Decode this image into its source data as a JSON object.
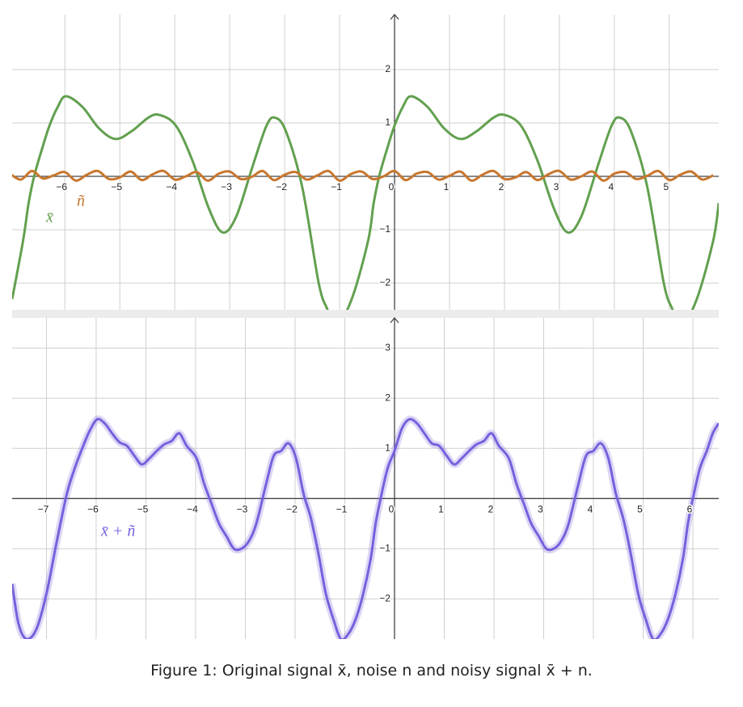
{
  "chart_data": [
    {
      "type": "line",
      "xlim": [
        -6.96,
        5.9
      ],
      "ylim": [
        -2.5,
        3.03
      ],
      "xticks": [
        {
          "value": -6,
          "label": "−6"
        },
        {
          "value": -5,
          "label": "−5"
        },
        {
          "value": -4,
          "label": "−4"
        },
        {
          "value": -3,
          "label": "−3"
        },
        {
          "value": -2,
          "label": "−2"
        },
        {
          "value": -1,
          "label": "−1"
        },
        0,
        1,
        2,
        3,
        4,
        5
      ],
      "yticks": [
        2,
        1,
        {
          "value": -1,
          "label": "−1"
        },
        {
          "value": -2,
          "label": "−2"
        }
      ],
      "grid": true,
      "series": [
        {
          "name": "x̄",
          "color": "#62a04f",
          "x": [
            -6.96,
            -6.76,
            -6.66,
            -6.56,
            -6.42,
            -6.28,
            -6.13,
            -5.98,
            -5.68,
            -5.38,
            -5.08,
            -4.78,
            -4.48,
            -4.28,
            -3.98,
            -3.68,
            -3.38,
            -3.13,
            -2.88,
            -2.58,
            -2.33,
            -2.18,
            -1.98,
            -1.68,
            -1.38,
            -1.22,
            -1.08,
            -0.78,
            -0.48,
            -0.38,
            -0.28,
            -0.14,
            0,
            0.15,
            0.3,
            0.6,
            0.9,
            1.2,
            1.5,
            1.8,
            2,
            2.3,
            2.6,
            2.9,
            3.15,
            3.4,
            3.7,
            3.95,
            4.1,
            4.3,
            4.6,
            4.9,
            5.06,
            5.2,
            5.5,
            5.8,
            5.9
          ],
          "values": [
            -2.3,
            -1.2,
            -0.5,
            0,
            0.5,
            0.95,
            1.3,
            1.5,
            1.3,
            0.9,
            0.7,
            0.85,
            1.1,
            1.15,
            0.95,
            0.3,
            -0.6,
            -1.05,
            -0.75,
            0.2,
            0.95,
            1.1,
            0.85,
            -0.2,
            -2.0,
            -2.5,
            -2.85,
            -2.3,
            -1.2,
            -0.5,
            0,
            0.5,
            0.95,
            1.3,
            1.5,
            1.3,
            0.9,
            0.7,
            0.85,
            1.1,
            1.15,
            0.95,
            0.3,
            -0.6,
            -1.05,
            -0.75,
            0.2,
            0.95,
            1.1,
            0.85,
            -0.2,
            -2.0,
            -2.5,
            -2.85,
            -2.3,
            -1.2,
            -0.5
          ]
        },
        {
          "name": "ñ",
          "color": "#c8772f",
          "x": [
            -7,
            -6.8,
            -6.6,
            -6.4,
            -6.2,
            -6,
            -5.8,
            -5.6,
            -5.4,
            -5.2,
            -5,
            -4.8,
            -4.6,
            -4.4,
            -4.2,
            -4,
            -3.8,
            -3.6,
            -3.4,
            -3.2,
            -3,
            -2.8,
            -2.6,
            -2.4,
            -2.2,
            -2,
            -1.8,
            -1.6,
            -1.4,
            -1.2,
            -1,
            -0.8,
            -0.6,
            -0.4,
            -0.2,
            0,
            0.2,
            0.4,
            0.6,
            0.8,
            1,
            1.2,
            1.4,
            1.6,
            1.8,
            2,
            2.2,
            2.4,
            2.6,
            2.8,
            3,
            3.2,
            3.4,
            3.6,
            3.8,
            4,
            4.2,
            4.4,
            4.6,
            4.8,
            5,
            5.2,
            5.4,
            5.6,
            5.8
          ],
          "values": [
            0.05,
            -0.06,
            0.1,
            -0.04,
            0.02,
            0.08,
            -0.08,
            0.03,
            0.1,
            -0.05,
            -0.02,
            0.09,
            -0.07,
            0.04,
            0.1,
            -0.06,
            0,
            0.08,
            -0.08,
            0.05,
            0.09,
            -0.05,
            -0.01,
            0.1,
            -0.07,
            0.03,
            0.08,
            -0.06,
            0.02,
            0.1,
            -0.08,
            0.04,
            0.09,
            -0.05,
            0,
            0.1,
            -0.07,
            0.05,
            0.08,
            -0.06,
            0.01,
            0.09,
            -0.08,
            0.03,
            0.1,
            -0.05,
            -0.02,
            0.08,
            -0.07,
            0.04,
            0.1,
            -0.06,
            0,
            0.09,
            -0.08,
            0.05,
            0.08,
            -0.05,
            0.01,
            0.1,
            -0.07,
            0.03,
            0.09,
            -0.06,
            0.02
          ]
        }
      ]
    },
    {
      "type": "line",
      "xlim": [
        -7.69,
        6.52
      ],
      "ylim": [
        -2.8,
        3.6
      ],
      "xticks": [
        {
          "value": -7,
          "label": "−7"
        },
        {
          "value": -6,
          "label": "−6"
        },
        {
          "value": -5,
          "label": "−5"
        },
        {
          "value": -4,
          "label": "−4"
        },
        {
          "value": -3,
          "label": "−3"
        },
        {
          "value": -2,
          "label": "−2"
        },
        {
          "value": -1,
          "label": "−1"
        },
        0,
        1,
        2,
        3,
        4,
        5,
        6
      ],
      "yticks": [
        3,
        2,
        1,
        {
          "value": -1,
          "label": "−1"
        },
        {
          "value": -2,
          "label": "−2"
        }
      ],
      "grid": true,
      "series": [
        {
          "name": "x̄ + ñ",
          "color": "#7760dc",
          "x": [
            -7.69,
            -7.56,
            -7.4,
            -7.2,
            -7,
            -6.8,
            -6.6,
            -6.45,
            -6.28,
            -6.13,
            -5.98,
            -5.83,
            -5.68,
            -5.53,
            -5.38,
            -5.23,
            -5.08,
            -4.93,
            -4.78,
            -4.63,
            -4.48,
            -4.33,
            -4.18,
            -3.98,
            -3.83,
            -3.68,
            -3.53,
            -3.38,
            -3.23,
            -3.08,
            -2.93,
            -2.78,
            -2.58,
            -2.43,
            -2.28,
            -2.13,
            -1.98,
            -1.83,
            -1.68,
            -1.53,
            -1.38,
            -1.23,
            -1.08,
            -0.93,
            -0.78,
            -0.63,
            -0.48,
            -0.38,
            -0.28,
            -0.14,
            0,
            0.15,
            0.3,
            0.45,
            0.6,
            0.75,
            0.9,
            1.05,
            1.2,
            1.35,
            1.5,
            1.65,
            1.8,
            1.95,
            2.1,
            2.3,
            2.45,
            2.6,
            2.75,
            2.9,
            3.05,
            3.2,
            3.35,
            3.5,
            3.7,
            3.85,
            4,
            4.15,
            4.3,
            4.45,
            4.6,
            4.75,
            4.9,
            5.05,
            5.2,
            5.35,
            5.5,
            5.65,
            5.8,
            5.9,
            6,
            6.14,
            6.28,
            6.4,
            6.52
          ],
          "values": [
            -1.7,
            -2.5,
            -2.8,
            -2.6,
            -1.9,
            -0.9,
            0.05,
            0.55,
            1.0,
            1.35,
            1.58,
            1.5,
            1.3,
            1.12,
            1.05,
            0.85,
            0.68,
            0.8,
            0.95,
            1.08,
            1.15,
            1.3,
            1.05,
            0.8,
            0.3,
            -0.1,
            -0.5,
            -0.75,
            -1.0,
            -1.0,
            -0.85,
            -0.5,
            0.3,
            0.85,
            0.95,
            1.1,
            0.8,
            0.1,
            -0.4,
            -1.1,
            -1.9,
            -2.4,
            -2.8,
            -2.7,
            -2.4,
            -1.9,
            -1.2,
            -0.5,
            0,
            0.6,
            0.95,
            1.4,
            1.58,
            1.5,
            1.3,
            1.1,
            1.05,
            0.85,
            0.68,
            0.8,
            0.95,
            1.08,
            1.15,
            1.3,
            1.05,
            0.8,
            0.3,
            -0.1,
            -0.5,
            -0.75,
            -1.0,
            -1.0,
            -0.85,
            -0.5,
            0.3,
            0.85,
            0.95,
            1.1,
            0.8,
            0.1,
            -0.4,
            -1.1,
            -1.9,
            -2.4,
            -2.8,
            -2.7,
            -2.4,
            -1.9,
            -1.2,
            -0.5,
            0,
            0.6,
            0.95,
            1.3,
            1.5
          ]
        }
      ]
    }
  ],
  "caption": "Figure 1: Original signal x̄, noise n and noisy signal x̄ + n."
}
